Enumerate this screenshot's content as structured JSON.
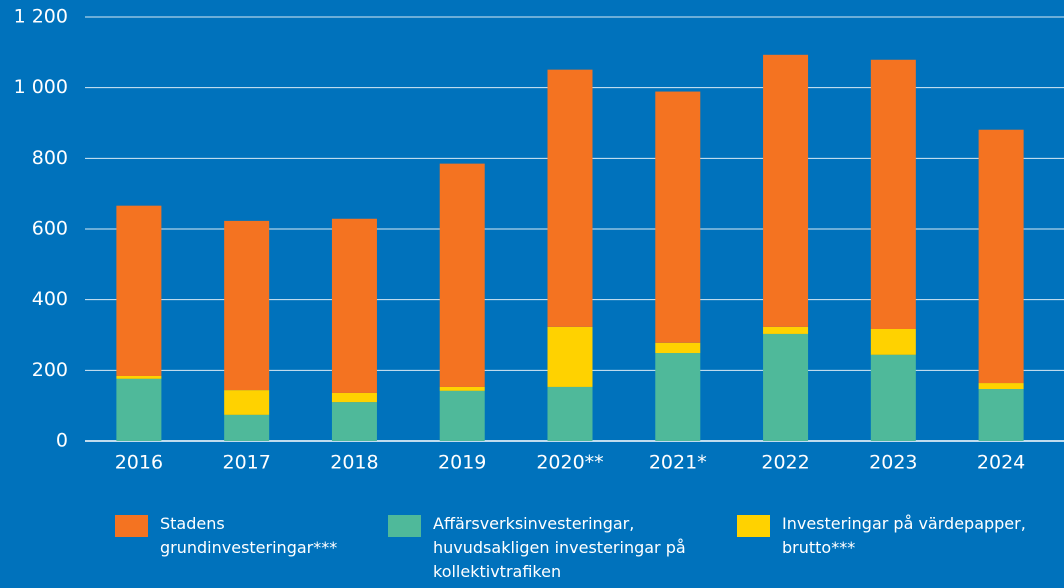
{
  "chart_data": {
    "type": "stacked-bar",
    "categories": [
      "2016",
      "2017",
      "2018",
      "2019",
      "2020**",
      "2021*",
      "2022",
      "2023",
      "2024"
    ],
    "series": [
      {
        "name": "Stadens grundinvesteringar***",
        "color": "#f47321",
        "values": [
          482,
          479,
          493,
          632,
          728,
          711,
          770,
          762,
          717
        ]
      },
      {
        "name": "Affärsverksinvesteringar, huvudsakligen investeringar på kollektivtrafiken",
        "color": "#4fb99a",
        "values": [
          176,
          74,
          110,
          142,
          153,
          249,
          303,
          244,
          147
        ]
      },
      {
        "name": "Investeringar på värdepapper, brutto***",
        "color": "#ffd200",
        "values": [
          8,
          70,
          26,
          11,
          170,
          29,
          20,
          73,
          17
        ]
      }
    ],
    "ylim": [
      0,
      1200
    ],
    "yticks": [
      0,
      200,
      400,
      600,
      800,
      {
        "value": 1000,
        "label": "1 000"
      },
      {
        "value": 1200,
        "label": "1 200"
      }
    ],
    "grid": true,
    "legend": "bottom"
  }
}
